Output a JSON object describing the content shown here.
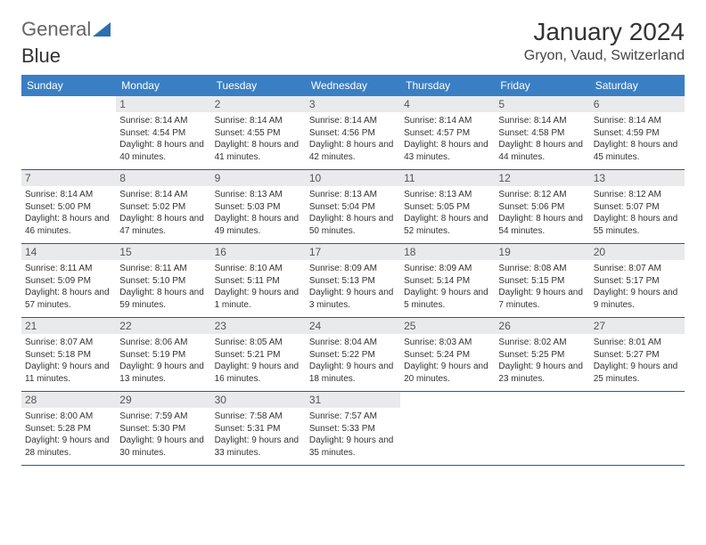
{
  "brand": {
    "part1": "General",
    "part2": "Blue",
    "logo_color": "#2f6fb0"
  },
  "title": "January 2024",
  "location": "Gryon, Vaud, Switzerland",
  "colors": {
    "header_bg": "#3a7fc4",
    "daynum_bg": "#e9eaeb",
    "week_border": "#265d91",
    "text": "#333333"
  },
  "dayHeaders": [
    "Sunday",
    "Monday",
    "Tuesday",
    "Wednesday",
    "Thursday",
    "Friday",
    "Saturday"
  ],
  "weeks": [
    [
      null,
      {
        "n": "1",
        "sr": "8:14 AM",
        "ss": "4:54 PM",
        "dl": "8 hours and 40 minutes."
      },
      {
        "n": "2",
        "sr": "8:14 AM",
        "ss": "4:55 PM",
        "dl": "8 hours and 41 minutes."
      },
      {
        "n": "3",
        "sr": "8:14 AM",
        "ss": "4:56 PM",
        "dl": "8 hours and 42 minutes."
      },
      {
        "n": "4",
        "sr": "8:14 AM",
        "ss": "4:57 PM",
        "dl": "8 hours and 43 minutes."
      },
      {
        "n": "5",
        "sr": "8:14 AM",
        "ss": "4:58 PM",
        "dl": "8 hours and 44 minutes."
      },
      {
        "n": "6",
        "sr": "8:14 AM",
        "ss": "4:59 PM",
        "dl": "8 hours and 45 minutes."
      }
    ],
    [
      {
        "n": "7",
        "sr": "8:14 AM",
        "ss": "5:00 PM",
        "dl": "8 hours and 46 minutes."
      },
      {
        "n": "8",
        "sr": "8:14 AM",
        "ss": "5:02 PM",
        "dl": "8 hours and 47 minutes."
      },
      {
        "n": "9",
        "sr": "8:13 AM",
        "ss": "5:03 PM",
        "dl": "8 hours and 49 minutes."
      },
      {
        "n": "10",
        "sr": "8:13 AM",
        "ss": "5:04 PM",
        "dl": "8 hours and 50 minutes."
      },
      {
        "n": "11",
        "sr": "8:13 AM",
        "ss": "5:05 PM",
        "dl": "8 hours and 52 minutes."
      },
      {
        "n": "12",
        "sr": "8:12 AM",
        "ss": "5:06 PM",
        "dl": "8 hours and 54 minutes."
      },
      {
        "n": "13",
        "sr": "8:12 AM",
        "ss": "5:07 PM",
        "dl": "8 hours and 55 minutes."
      }
    ],
    [
      {
        "n": "14",
        "sr": "8:11 AM",
        "ss": "5:09 PM",
        "dl": "8 hours and 57 minutes."
      },
      {
        "n": "15",
        "sr": "8:11 AM",
        "ss": "5:10 PM",
        "dl": "8 hours and 59 minutes."
      },
      {
        "n": "16",
        "sr": "8:10 AM",
        "ss": "5:11 PM",
        "dl": "9 hours and 1 minute."
      },
      {
        "n": "17",
        "sr": "8:09 AM",
        "ss": "5:13 PM",
        "dl": "9 hours and 3 minutes."
      },
      {
        "n": "18",
        "sr": "8:09 AM",
        "ss": "5:14 PM",
        "dl": "9 hours and 5 minutes."
      },
      {
        "n": "19",
        "sr": "8:08 AM",
        "ss": "5:15 PM",
        "dl": "9 hours and 7 minutes."
      },
      {
        "n": "20",
        "sr": "8:07 AM",
        "ss": "5:17 PM",
        "dl": "9 hours and 9 minutes."
      }
    ],
    [
      {
        "n": "21",
        "sr": "8:07 AM",
        "ss": "5:18 PM",
        "dl": "9 hours and 11 minutes."
      },
      {
        "n": "22",
        "sr": "8:06 AM",
        "ss": "5:19 PM",
        "dl": "9 hours and 13 minutes."
      },
      {
        "n": "23",
        "sr": "8:05 AM",
        "ss": "5:21 PM",
        "dl": "9 hours and 16 minutes."
      },
      {
        "n": "24",
        "sr": "8:04 AM",
        "ss": "5:22 PM",
        "dl": "9 hours and 18 minutes."
      },
      {
        "n": "25",
        "sr": "8:03 AM",
        "ss": "5:24 PM",
        "dl": "9 hours and 20 minutes."
      },
      {
        "n": "26",
        "sr": "8:02 AM",
        "ss": "5:25 PM",
        "dl": "9 hours and 23 minutes."
      },
      {
        "n": "27",
        "sr": "8:01 AM",
        "ss": "5:27 PM",
        "dl": "9 hours and 25 minutes."
      }
    ],
    [
      {
        "n": "28",
        "sr": "8:00 AM",
        "ss": "5:28 PM",
        "dl": "9 hours and 28 minutes."
      },
      {
        "n": "29",
        "sr": "7:59 AM",
        "ss": "5:30 PM",
        "dl": "9 hours and 30 minutes."
      },
      {
        "n": "30",
        "sr": "7:58 AM",
        "ss": "5:31 PM",
        "dl": "9 hours and 33 minutes."
      },
      {
        "n": "31",
        "sr": "7:57 AM",
        "ss": "5:33 PM",
        "dl": "9 hours and 35 minutes."
      },
      null,
      null,
      null
    ]
  ],
  "labels": {
    "sunrise": "Sunrise:",
    "sunset": "Sunset:",
    "daylight": "Daylight:"
  }
}
